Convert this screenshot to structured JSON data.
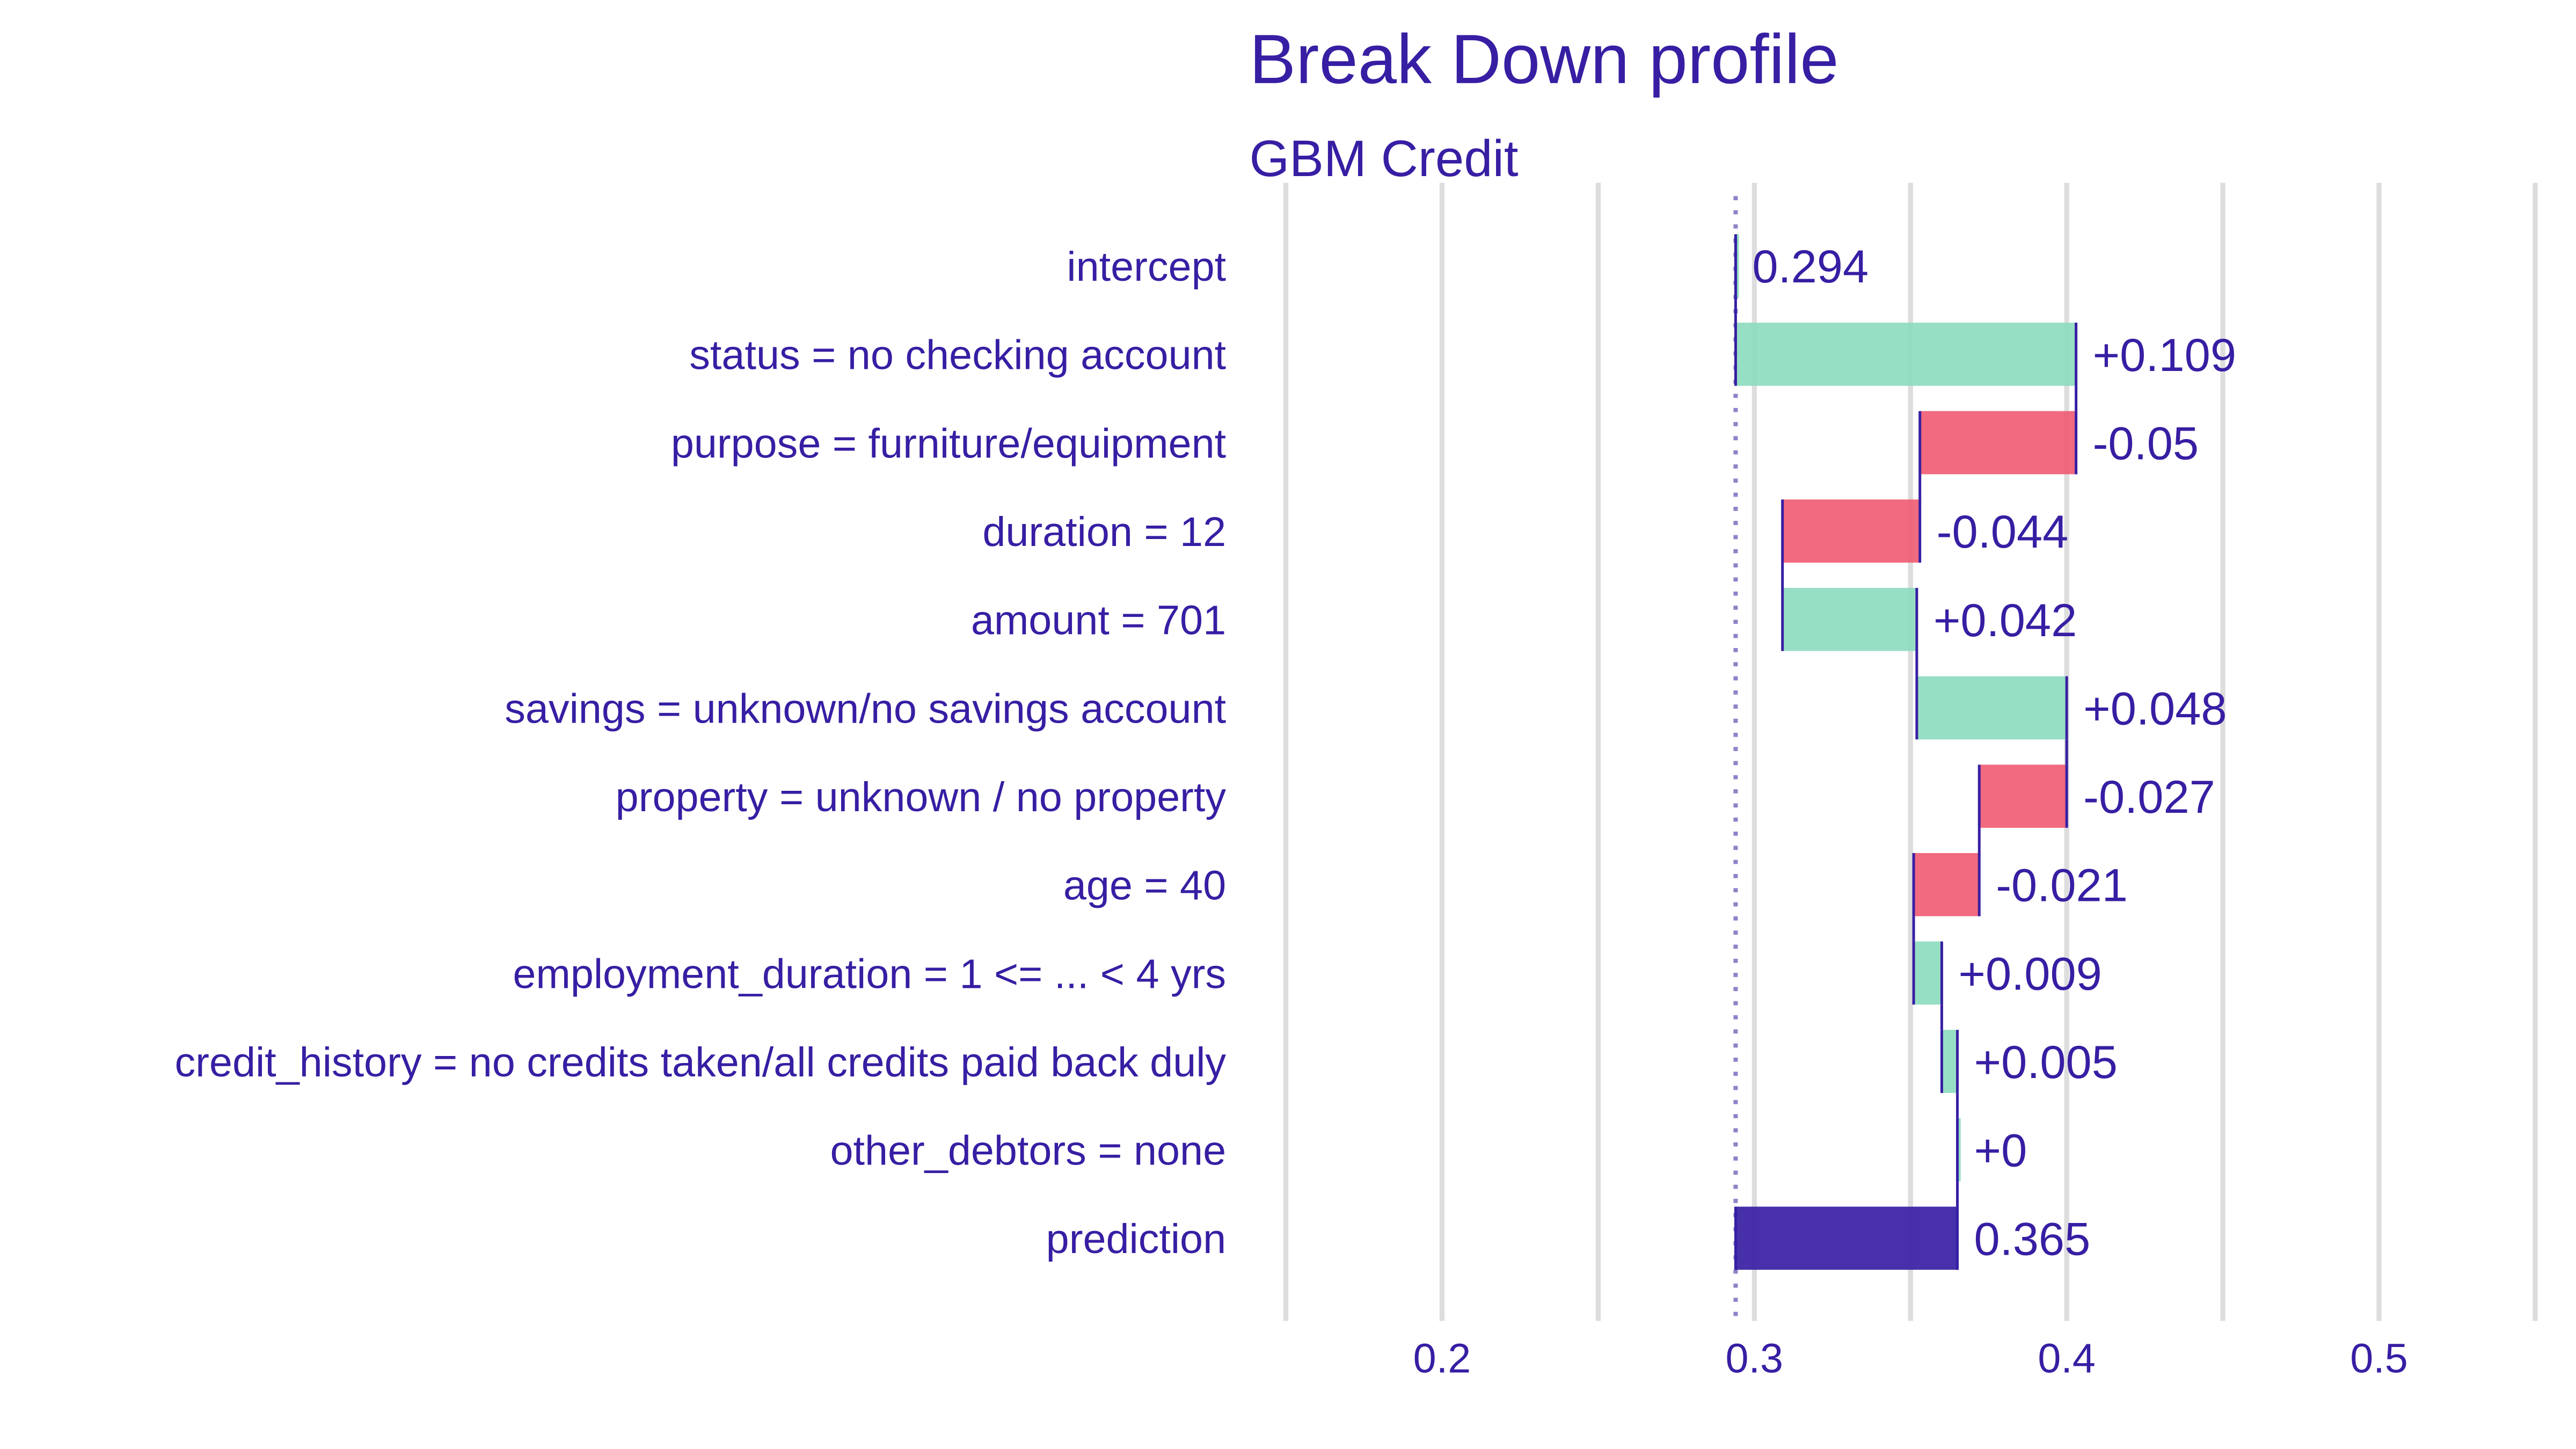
{
  "chart_data": {
    "type": "waterfall",
    "title": "Break Down profile",
    "subtitle": "GBM Credit",
    "xlim": [
      0.15,
      0.55
    ],
    "x_ticks": [
      0.2,
      0.3,
      0.4,
      0.5
    ],
    "x_tick_labels": [
      "0.2",
      "0.3",
      "0.4",
      "0.5"
    ],
    "grid": true,
    "baseline": 0.294,
    "rows": [
      {
        "label": "intercept",
        "start": 0.294,
        "end": 0.294,
        "value_label": "0.294",
        "kind": "intercept"
      },
      {
        "label": "status = no checking account",
        "start": 0.294,
        "end": 0.403,
        "value_label": "+0.109",
        "kind": "positive"
      },
      {
        "label": "purpose = furniture/equipment",
        "start": 0.403,
        "end": 0.353,
        "value_label": "-0.05",
        "kind": "negative"
      },
      {
        "label": "duration = 12",
        "start": 0.353,
        "end": 0.309,
        "value_label": "-0.044",
        "kind": "negative"
      },
      {
        "label": "amount = 701",
        "start": 0.309,
        "end": 0.352,
        "value_label": "+0.042",
        "kind": "positive"
      },
      {
        "label": "savings = unknown/no savings account",
        "start": 0.352,
        "end": 0.4,
        "value_label": "+0.048",
        "kind": "positive"
      },
      {
        "label": "property = unknown / no property",
        "start": 0.4,
        "end": 0.372,
        "value_label": "-0.027",
        "kind": "negative"
      },
      {
        "label": "age = 40",
        "start": 0.372,
        "end": 0.351,
        "value_label": "-0.021",
        "kind": "negative"
      },
      {
        "label": "employment_duration = 1 <= ... < 4 yrs",
        "start": 0.351,
        "end": 0.36,
        "value_label": "+0.009",
        "kind": "positive"
      },
      {
        "label": "credit_history = no credits taken/all credits paid back duly",
        "start": 0.36,
        "end": 0.365,
        "value_label": "+0.005",
        "kind": "positive"
      },
      {
        "label": "other_debtors = none",
        "start": 0.365,
        "end": 0.365,
        "value_label": "+0",
        "kind": "positive"
      },
      {
        "label": "prediction",
        "start": 0.294,
        "end": 0.365,
        "value_label": "0.365",
        "kind": "prediction"
      }
    ],
    "colors": {
      "positive": "#8bdcbe",
      "negative": "#f05a71",
      "prediction": "#371ea3",
      "text": "#371ea3",
      "grid": "#dddddd",
      "baseline": "#8e83c8"
    }
  }
}
